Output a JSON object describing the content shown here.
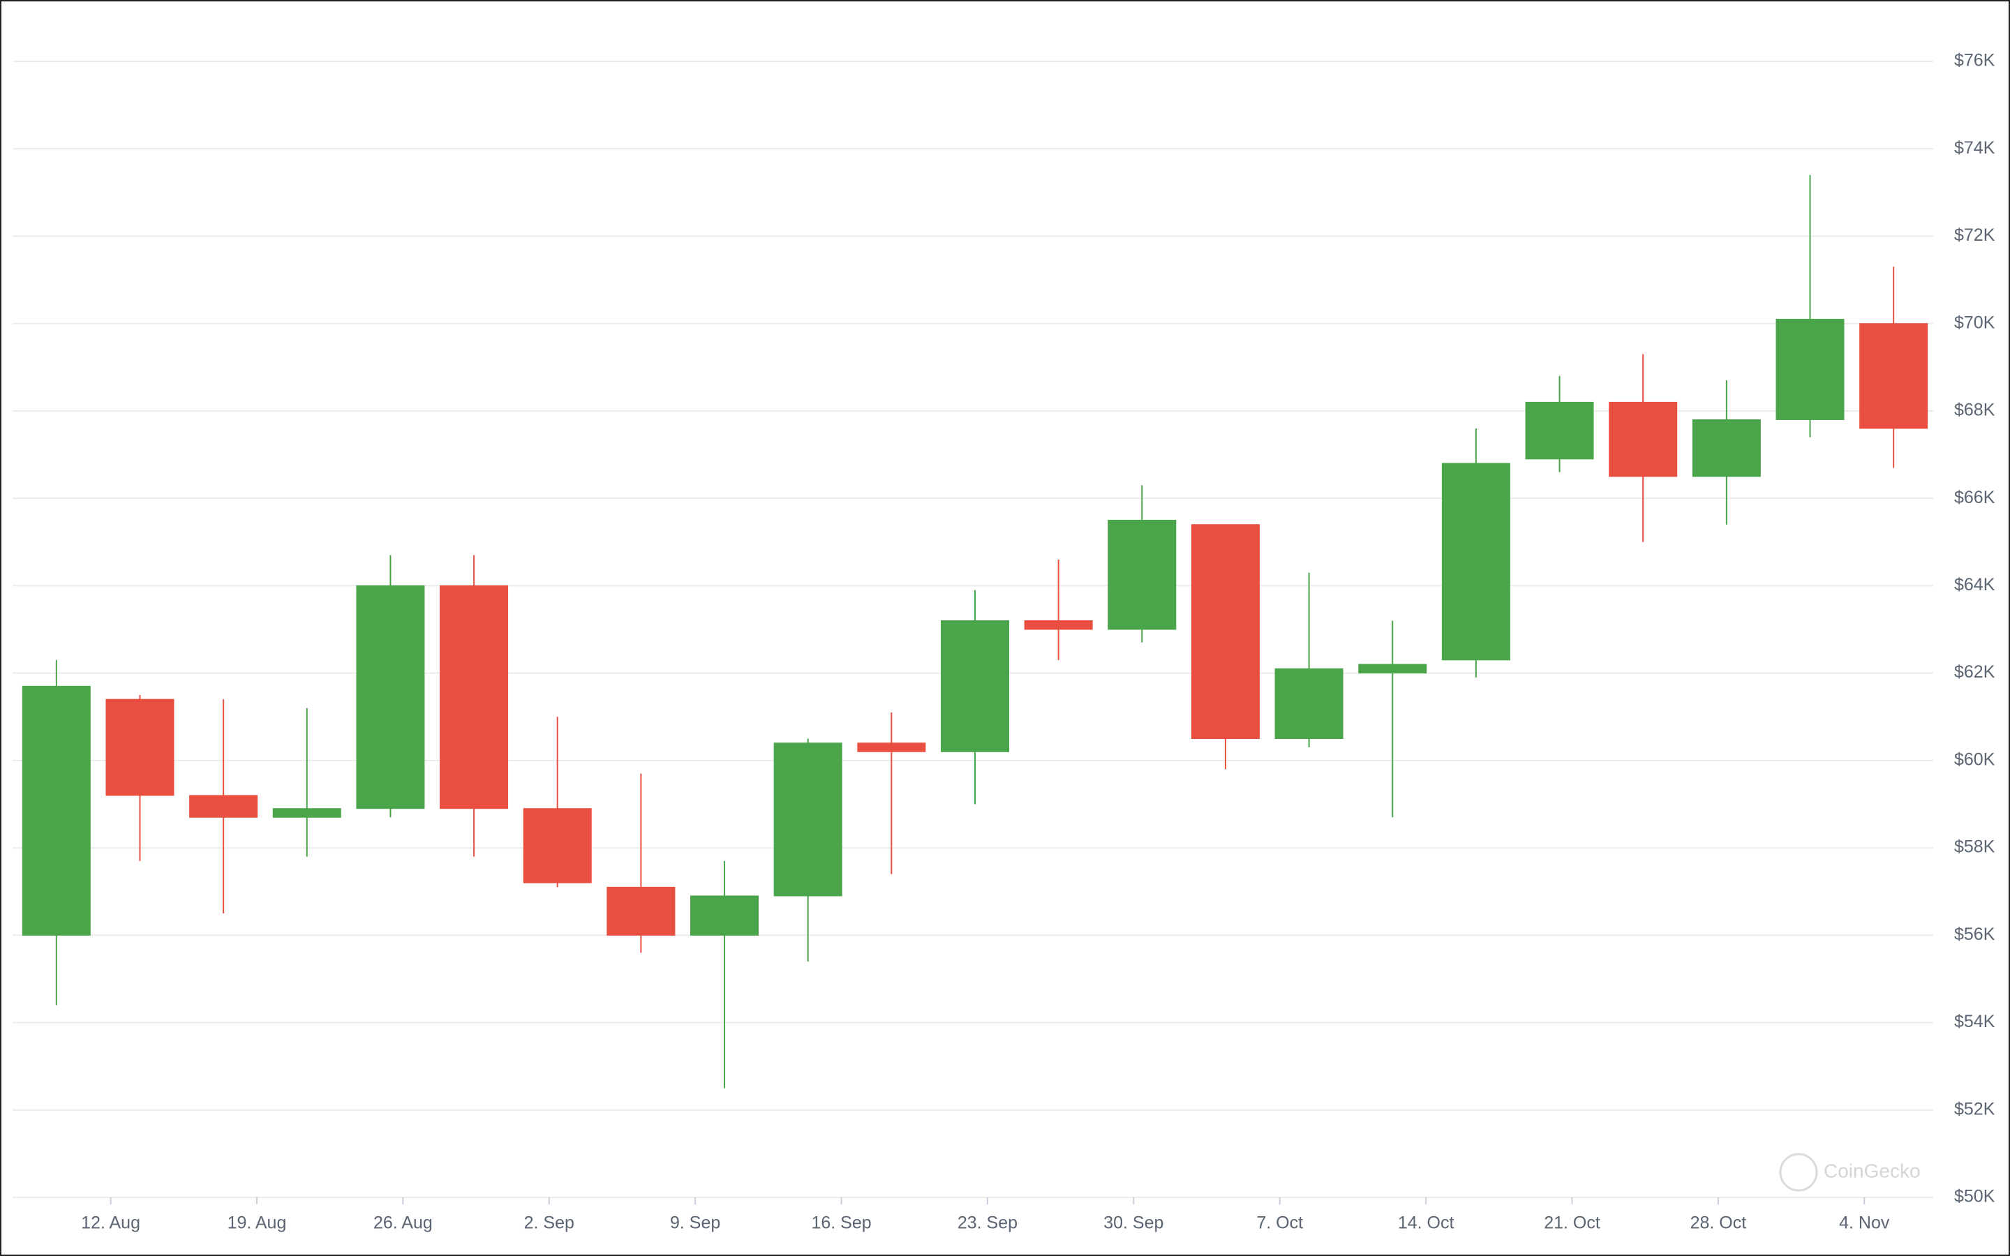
{
  "chart_data": {
    "type": "candlestick",
    "x": [
      9.4,
      13.4,
      17.4,
      21.4,
      25.4,
      29.4,
      33.4,
      37.4,
      41.4,
      45.4,
      49.4,
      53.4,
      57.4,
      61.4,
      65.4,
      69.4,
      73.4,
      77.4,
      81.4,
      85.4,
      89.4,
      93.4,
      97.4
    ],
    "open": [
      56000,
      61400,
      59200,
      58700,
      58900,
      64000,
      58900,
      57100,
      56000,
      56900,
      60400,
      60200,
      63200,
      63000,
      65400,
      60500,
      62000,
      62300,
      66900,
      68200,
      66500,
      67800,
      70000
    ],
    "high": [
      62300,
      61500,
      61400,
      61200,
      64700,
      64700,
      61000,
      59700,
      57700,
      60500,
      61100,
      63900,
      64600,
      66300,
      65400,
      64300,
      63200,
      67600,
      68800,
      69300,
      68700,
      73400,
      71300
    ],
    "low": [
      54400,
      57700,
      56500,
      57800,
      58700,
      57800,
      57100,
      55600,
      52500,
      55400,
      57400,
      59000,
      62300,
      62700,
      59800,
      60300,
      58700,
      61900,
      66600,
      65000,
      65400,
      67400,
      66700
    ],
    "close": [
      61700,
      59200,
      58700,
      58900,
      64000,
      58900,
      57200,
      56000,
      56900,
      60400,
      60200,
      63200,
      63000,
      65500,
      60500,
      62100,
      62200,
      66800,
      68200,
      66500,
      67800,
      70100,
      67600
    ],
    "up_color": "#4aa54a",
    "down_color": "#e94f40",
    "xlim": [
      7.3,
      99.3
    ],
    "xticks": [
      {
        "value": 12,
        "label": "12. Aug"
      },
      {
        "value": 19,
        "label": "19. Aug"
      },
      {
        "value": 26,
        "label": "26. Aug"
      },
      {
        "value": 33,
        "label": "2. Sep"
      },
      {
        "value": 40,
        "label": "9. Sep"
      },
      {
        "value": 47,
        "label": "16. Sep"
      },
      {
        "value": 54,
        "label": "23. Sep"
      },
      {
        "value": 61,
        "label": "30. Sep"
      },
      {
        "value": 68,
        "label": "7. Oct"
      },
      {
        "value": 75,
        "label": "14. Oct"
      },
      {
        "value": 82,
        "label": "21. Oct"
      },
      {
        "value": 89,
        "label": "28. Oct"
      },
      {
        "value": 96,
        "label": "4. Nov"
      }
    ],
    "ylim": [
      50000,
      76000
    ],
    "yticks": [
      {
        "value": 50000,
        "label": "$50K"
      },
      {
        "value": 52000,
        "label": "$52K"
      },
      {
        "value": 54000,
        "label": "$54K"
      },
      {
        "value": 56000,
        "label": "$56K"
      },
      {
        "value": 58000,
        "label": "$58K"
      },
      {
        "value": 60000,
        "label": "$60K"
      },
      {
        "value": 62000,
        "label": "$62K"
      },
      {
        "value": 64000,
        "label": "$64K"
      },
      {
        "value": 66000,
        "label": "$66K"
      },
      {
        "value": 68000,
        "label": "$68K"
      },
      {
        "value": 70000,
        "label": "$70K"
      },
      {
        "value": 72000,
        "label": "$72K"
      },
      {
        "value": 74000,
        "label": "$74K"
      },
      {
        "value": 76000,
        "label": "$76K"
      }
    ],
    "grid": true,
    "watermark": "CoinGecko"
  }
}
